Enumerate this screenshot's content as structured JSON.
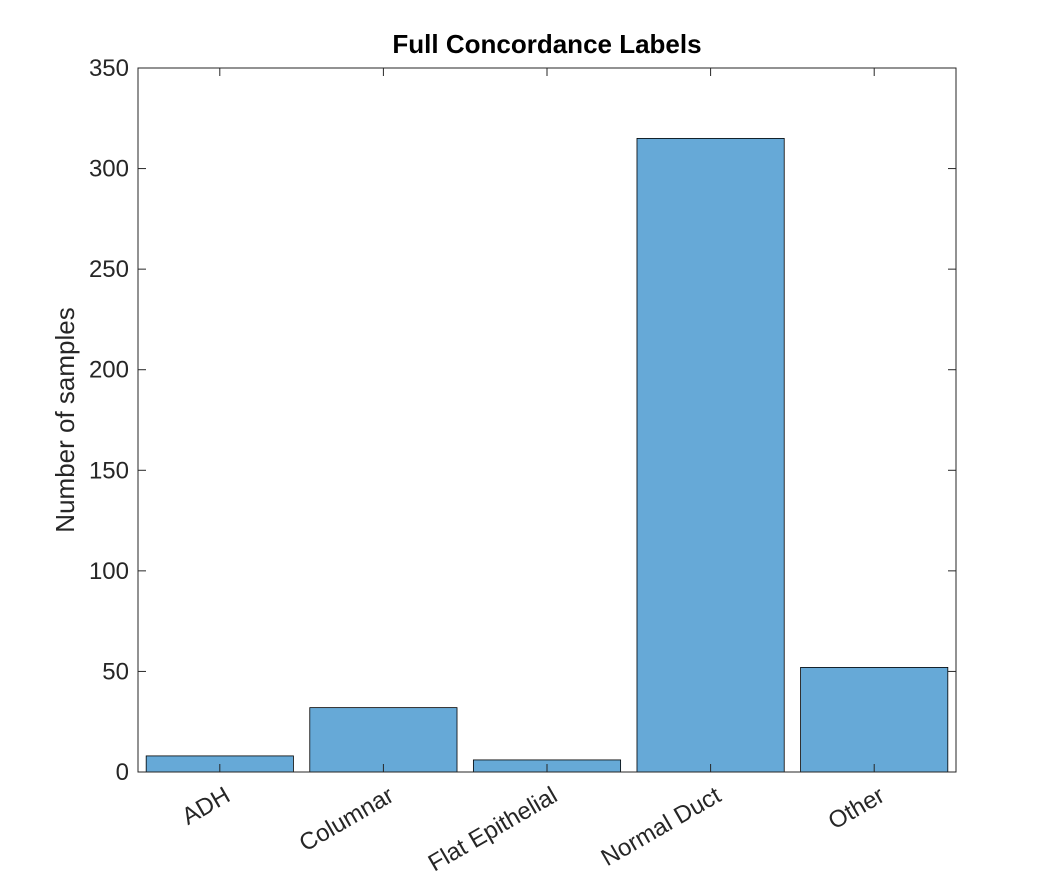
{
  "chart_data": {
    "type": "bar",
    "title": "Full Concordance Labels",
    "xlabel": "",
    "ylabel": "Number of samples",
    "categories": [
      "ADH",
      "Columnar",
      "Flat Epithelial",
      "Normal Duct",
      "Other"
    ],
    "values": [
      8,
      32,
      6,
      315,
      52
    ],
    "ylim": [
      0,
      350
    ],
    "yticks": [
      0,
      50,
      100,
      150,
      200,
      250,
      300,
      350
    ],
    "ytick_labels": [
      "0",
      "50",
      "100",
      "150",
      "200",
      "250",
      "300",
      "350"
    ],
    "bar_color": "#66A9D7",
    "bar_edge_color": "#000000",
    "grid": false,
    "legend": "none"
  }
}
